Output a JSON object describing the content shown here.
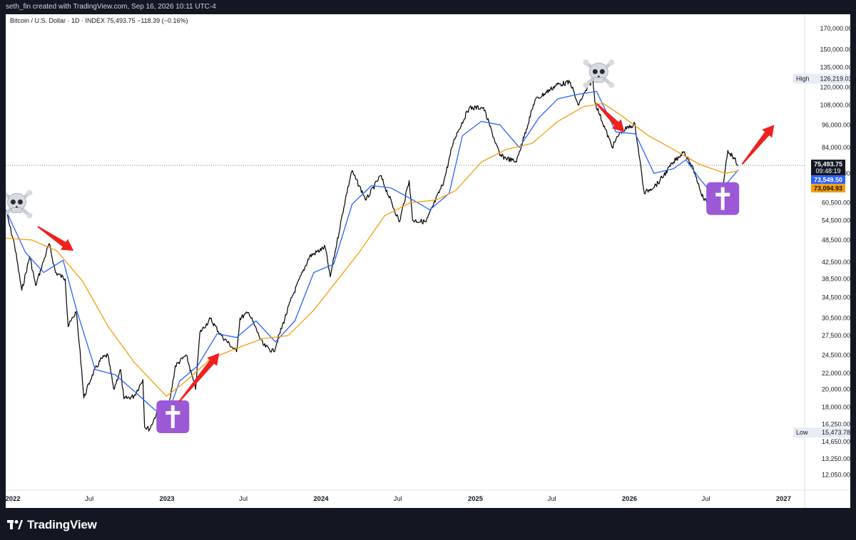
{
  "header": {
    "text": "seth_fin created with TradingView.com, Sep 16, 2026 10:11 UTC-4"
  },
  "symbol": {
    "line": "Bitcoin / U.S. Dollar · 1D · INDEX  75,493.75  −118.39 (−0.16%)"
  },
  "footer": {
    "logo_text": "TradingView"
  },
  "chart_data": {
    "type": "line",
    "title": "Bitcoin / U.S. Dollar · 1D · INDEX",
    "y_scale": "log",
    "ylim": [
      11000,
      185000
    ],
    "xlim": [
      "2021-12-15",
      "2027-02-20"
    ],
    "grid": false,
    "y_ticks": [
      170000,
      150000,
      135000,
      120000,
      108000,
      96000,
      84000,
      72000,
      60500,
      54500,
      48500,
      42500,
      38500,
      34500,
      30500,
      27500,
      24500,
      22000,
      20000,
      18000,
      16250,
      14650,
      13250,
      12050
    ],
    "y_tick_labels": [
      "170,000.00",
      "150,000.00",
      "135,000.00",
      "120,000.00",
      "108,000.00",
      "96,000.00",
      "84,000.00",
      "72,000.00",
      "60,500.00",
      "54,500.00",
      "48,500.00",
      "42,500.00",
      "38,500.00",
      "34,500.00",
      "30,500.00",
      "27,500.00",
      "24,500.00",
      "22,000.00",
      "20,000.00",
      "18,000.00",
      "16,250.00",
      "14,650.00",
      "13,250.00",
      "12,050.00"
    ],
    "x_ticks": [
      {
        "date": "2022-01-01",
        "label": "2022",
        "bold": true
      },
      {
        "date": "2022-07-01",
        "label": "Jul",
        "bold": false
      },
      {
        "date": "2023-01-01",
        "label": "2023",
        "bold": true
      },
      {
        "date": "2023-07-01",
        "label": "Jul",
        "bold": false
      },
      {
        "date": "2024-01-01",
        "label": "2024",
        "bold": true
      },
      {
        "date": "2024-07-01",
        "label": "Jul",
        "bold": false
      },
      {
        "date": "2025-01-01",
        "label": "2025",
        "bold": true
      },
      {
        "date": "2025-07-01",
        "label": "Jul",
        "bold": false
      },
      {
        "date": "2026-01-01",
        "label": "2026",
        "bold": true
      },
      {
        "date": "2026-07-01",
        "label": "Jul",
        "bold": false
      },
      {
        "date": "2027-01-01",
        "label": "2027",
        "bold": true
      }
    ],
    "series": [
      {
        "key": "price",
        "color": "#000000",
        "points": [
          [
            "2021-12-15",
            58000
          ],
          [
            "2022-01-05",
            47000
          ],
          [
            "2022-01-22",
            36000
          ],
          [
            "2022-02-10",
            44000
          ],
          [
            "2022-02-24",
            37000
          ],
          [
            "2022-03-28",
            47500
          ],
          [
            "2022-04-12",
            40000
          ],
          [
            "2022-05-05",
            38500
          ],
          [
            "2022-05-12",
            29000
          ],
          [
            "2022-05-31",
            31700
          ],
          [
            "2022-06-13",
            22500
          ],
          [
            "2022-06-18",
            19000
          ],
          [
            "2022-07-08",
            21800
          ],
          [
            "2022-07-30",
            24000
          ],
          [
            "2022-08-14",
            24500
          ],
          [
            "2022-08-28",
            20000
          ],
          [
            "2022-09-13",
            22500
          ],
          [
            "2022-09-21",
            18900
          ],
          [
            "2022-10-15",
            19200
          ],
          [
            "2022-11-05",
            21200
          ],
          [
            "2022-11-09",
            16000
          ],
          [
            "2022-11-21",
            15800
          ],
          [
            "2022-12-14",
            18000
          ],
          [
            "2022-12-31",
            16550
          ],
          [
            "2023-01-21",
            23000
          ],
          [
            "2023-02-16",
            24500
          ],
          [
            "2023-03-10",
            20000
          ],
          [
            "2023-03-20",
            28000
          ],
          [
            "2023-04-14",
            30400
          ],
          [
            "2023-05-10",
            27500
          ],
          [
            "2023-06-15",
            25000
          ],
          [
            "2023-06-23",
            30500
          ],
          [
            "2023-07-14",
            31500
          ],
          [
            "2023-08-17",
            26000
          ],
          [
            "2023-09-11",
            25000
          ],
          [
            "2023-10-24",
            34500
          ],
          [
            "2023-12-05",
            44000
          ],
          [
            "2024-01-11",
            46500
          ],
          [
            "2024-01-23",
            39000
          ],
          [
            "2024-02-28",
            62000
          ],
          [
            "2024-03-14",
            73000
          ],
          [
            "2024-04-17",
            61500
          ],
          [
            "2024-05-21",
            71000
          ],
          [
            "2024-07-05",
            54000
          ],
          [
            "2024-07-28",
            69000
          ],
          [
            "2024-08-05",
            54500
          ],
          [
            "2024-09-06",
            54000
          ],
          [
            "2024-10-18",
            68500
          ],
          [
            "2024-11-11",
            88000
          ],
          [
            "2024-12-17",
            106000
          ],
          [
            "2025-01-20",
            106500
          ],
          [
            "2025-02-28",
            80000
          ],
          [
            "2025-04-08",
            77000
          ],
          [
            "2025-05-22",
            111000
          ],
          [
            "2025-07-14",
            122000
          ],
          [
            "2025-08-14",
            123500
          ],
          [
            "2025-09-01",
            108000
          ],
          [
            "2025-10-06",
            126000
          ],
          [
            "2025-10-11",
            110000
          ],
          [
            "2025-11-21",
            84000
          ],
          [
            "2025-12-10",
            92000
          ],
          [
            "2026-01-14",
            96500
          ],
          [
            "2026-02-05",
            64000
          ],
          [
            "2026-03-10",
            68000
          ],
          [
            "2026-04-15",
            77000
          ],
          [
            "2026-05-10",
            82000
          ],
          [
            "2026-06-05",
            72000
          ],
          [
            "2026-06-25",
            62000
          ],
          [
            "2026-07-10",
            60000
          ],
          [
            "2026-08-01",
            65000
          ],
          [
            "2026-08-12",
            68000
          ],
          [
            "2026-08-22",
            82500
          ],
          [
            "2026-09-05",
            79000
          ],
          [
            "2026-09-16",
            75494
          ]
        ]
      },
      {
        "key": "ma_blue",
        "color": "#2962ff",
        "points": [
          [
            "2021-12-15",
            58000
          ],
          [
            "2022-01-31",
            45000
          ],
          [
            "2022-03-15",
            40000
          ],
          [
            "2022-04-30",
            43000
          ],
          [
            "2022-06-01",
            32000
          ],
          [
            "2022-07-15",
            22500
          ],
          [
            "2022-09-01",
            21800
          ],
          [
            "2022-10-15",
            19800
          ],
          [
            "2022-12-01",
            17800
          ],
          [
            "2022-12-31",
            16900
          ],
          [
            "2023-01-31",
            21000
          ],
          [
            "2023-03-15",
            23000
          ],
          [
            "2023-04-30",
            27800
          ],
          [
            "2023-06-15",
            27200
          ],
          [
            "2023-07-31",
            30000
          ],
          [
            "2023-09-15",
            26500
          ],
          [
            "2023-10-31",
            30000
          ],
          [
            "2023-12-15",
            40000
          ],
          [
            "2024-01-31",
            42000
          ],
          [
            "2024-03-15",
            60000
          ],
          [
            "2024-04-30",
            67000
          ],
          [
            "2024-06-15",
            66000
          ],
          [
            "2024-07-31",
            62000
          ],
          [
            "2024-09-15",
            58000
          ],
          [
            "2024-10-31",
            64000
          ],
          [
            "2024-12-01",
            90000
          ],
          [
            "2025-01-15",
            98000
          ],
          [
            "2025-02-28",
            96000
          ],
          [
            "2025-04-15",
            84000
          ],
          [
            "2025-05-31",
            100000
          ],
          [
            "2025-07-15",
            112000
          ],
          [
            "2025-08-31",
            115000
          ],
          [
            "2025-10-15",
            117000
          ],
          [
            "2025-11-30",
            92000
          ],
          [
            "2026-01-15",
            91000
          ],
          [
            "2026-02-28",
            72000
          ],
          [
            "2026-04-15",
            74000
          ],
          [
            "2026-05-15",
            78000
          ],
          [
            "2026-06-15",
            70000
          ],
          [
            "2026-07-15",
            64000
          ],
          [
            "2026-08-15",
            67000
          ],
          [
            "2026-09-16",
            73549
          ]
        ]
      },
      {
        "key": "ma_orange",
        "color": "#f59e0b",
        "points": [
          [
            "2021-12-15",
            49000
          ],
          [
            "2022-02-15",
            48500
          ],
          [
            "2022-04-15",
            45500
          ],
          [
            "2022-06-15",
            38000
          ],
          [
            "2022-08-15",
            29000
          ],
          [
            "2022-10-15",
            23500
          ],
          [
            "2022-12-15",
            20000
          ],
          [
            "2022-12-31",
            19200
          ],
          [
            "2023-02-15",
            21000
          ],
          [
            "2023-04-15",
            24000
          ],
          [
            "2023-06-15",
            25500
          ],
          [
            "2023-08-15",
            27000
          ],
          [
            "2023-10-15",
            27500
          ],
          [
            "2023-12-15",
            32000
          ],
          [
            "2024-02-15",
            39000
          ],
          [
            "2024-03-31",
            45000
          ],
          [
            "2024-05-31",
            56000
          ],
          [
            "2024-07-31",
            60500
          ],
          [
            "2024-09-30",
            61500
          ],
          [
            "2024-11-15",
            65000
          ],
          [
            "2025-01-15",
            77000
          ],
          [
            "2025-03-15",
            83000
          ],
          [
            "2025-05-15",
            86000
          ],
          [
            "2025-07-15",
            98000
          ],
          [
            "2025-09-15",
            107000
          ],
          [
            "2025-10-31",
            109000
          ],
          [
            "2025-12-15",
            101000
          ],
          [
            "2026-02-15",
            90000
          ],
          [
            "2026-04-15",
            83000
          ],
          [
            "2026-06-15",
            76000
          ],
          [
            "2026-08-15",
            72000
          ],
          [
            "2026-09-16",
            73095
          ]
        ]
      }
    ],
    "price_labels": [
      {
        "key": "last",
        "value": 75493.75,
        "text": "75,493.75",
        "subtext": "09:48:19",
        "bg": "#131722",
        "fg": "#ffffff"
      },
      {
        "key": "blue",
        "value": 73549.5,
        "text": "73,549.50",
        "bg": "#2962ff",
        "fg": "#ffffff"
      },
      {
        "key": "orange",
        "value": 73094.93,
        "text": "73,094.93",
        "bg": "#f59e0b",
        "fg": "#131722"
      }
    ],
    "high_low": [
      {
        "label": "High",
        "value": 126219.03,
        "text": "126,219.03"
      },
      {
        "label": "Low",
        "value": 15473.78,
        "text": "15,473.78"
      }
    ],
    "annotations": {
      "skulls": [
        {
          "date": "2022-01-10",
          "value": 60000
        },
        {
          "date": "2025-10-20",
          "value": 130000
        }
      ],
      "crosses": [
        {
          "date": "2023-01-15",
          "value": 17000
        },
        {
          "date": "2026-08-10",
          "value": 62000
        }
      ],
      "arrows": [
        {
          "from": [
            "2022-03-01",
            "2022-05-25"
          ],
          "from_v": [
            52500,
            45500
          ],
          "direction": "down"
        },
        {
          "from": [
            "2023-01-30",
            "2023-05-05"
          ],
          "from_v": [
            18600,
            24800
          ],
          "direction": "up"
        },
        {
          "from": [
            "2025-10-15",
            "2025-12-20"
          ],
          "from_v": [
            109000,
            92000
          ],
          "direction": "down"
        },
        {
          "from": [
            "2026-09-25",
            "2026-12-10"
          ],
          "from_v": [
            76000,
            96000
          ],
          "direction": "up"
        }
      ]
    }
  }
}
